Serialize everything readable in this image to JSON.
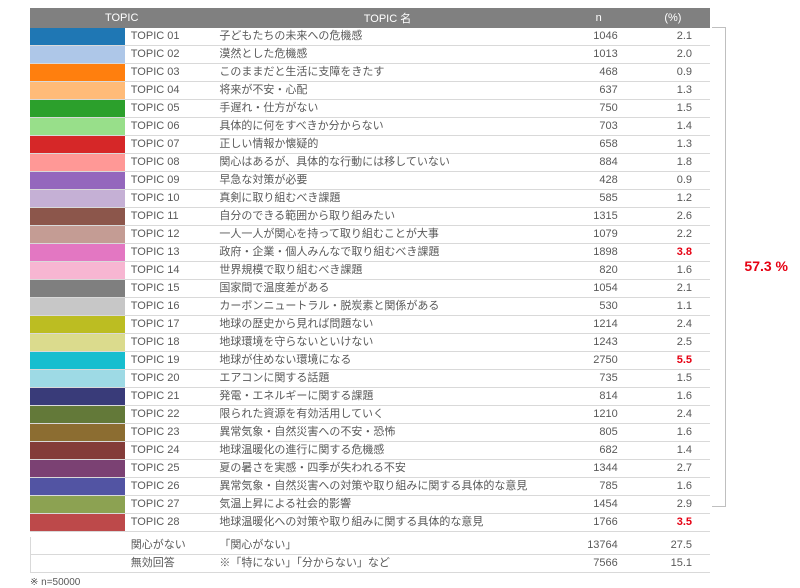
{
  "table": {
    "headers": {
      "topic": "TOPIC",
      "name": "TOPIC 名",
      "n": "n",
      "pct": "(%)"
    },
    "rows": [
      {
        "color": "#1f77b4",
        "topic": "TOPIC 01",
        "name": "子どもたちの未来への危機感",
        "n": "1046",
        "pct": "2.1",
        "hl": false
      },
      {
        "color": "#aec7e8",
        "topic": "TOPIC 02",
        "name": "漠然とした危機感",
        "n": "1013",
        "pct": "2.0",
        "hl": false
      },
      {
        "color": "#ff7f0e",
        "topic": "TOPIC 03",
        "name": "このままだと生活に支障をきたす",
        "n": "468",
        "pct": "0.9",
        "hl": false
      },
      {
        "color": "#ffbb78",
        "topic": "TOPIC 04",
        "name": "将来が不安・心配",
        "n": "637",
        "pct": "1.3",
        "hl": false
      },
      {
        "color": "#2ca02c",
        "topic": "TOPIC 05",
        "name": "手遅れ・仕方がない",
        "n": "750",
        "pct": "1.5",
        "hl": false
      },
      {
        "color": "#98df8a",
        "topic": "TOPIC 06",
        "name": "具体的に何をすべきか分からない",
        "n": "703",
        "pct": "1.4",
        "hl": false
      },
      {
        "color": "#d62728",
        "topic": "TOPIC 07",
        "name": "正しい情報か懐疑的",
        "n": "658",
        "pct": "1.3",
        "hl": false
      },
      {
        "color": "#ff9896",
        "topic": "TOPIC 08",
        "name": "関心はあるが、具体的な行動には移していない",
        "n": "884",
        "pct": "1.8",
        "hl": false
      },
      {
        "color": "#9467bd",
        "topic": "TOPIC 09",
        "name": "早急な対策が必要",
        "n": "428",
        "pct": "0.9",
        "hl": false
      },
      {
        "color": "#c5b0d5",
        "topic": "TOPIC 10",
        "name": "真剣に取り組むべき課題",
        "n": "585",
        "pct": "1.2",
        "hl": false
      },
      {
        "color": "#8c564b",
        "topic": "TOPIC 11",
        "name": "自分のできる範囲から取り組みたい",
        "n": "1315",
        "pct": "2.6",
        "hl": false
      },
      {
        "color": "#c49c94",
        "topic": "TOPIC 12",
        "name": "一人一人が関心を持って取り組むことが大事",
        "n": "1079",
        "pct": "2.2",
        "hl": false
      },
      {
        "color": "#e377c2",
        "topic": "TOPIC 13",
        "name": "政府・企業・個人みんなで取り組むべき課題",
        "n": "1898",
        "pct": "3.8",
        "hl": true
      },
      {
        "color": "#f7b6d2",
        "topic": "TOPIC 14",
        "name": "世界規模で取り組むべき課題",
        "n": "820",
        "pct": "1.6",
        "hl": false
      },
      {
        "color": "#7f7f7f",
        "topic": "TOPIC 15",
        "name": "国家間で温度差がある",
        "n": "1054",
        "pct": "2.1",
        "hl": false
      },
      {
        "color": "#c7c7c7",
        "topic": "TOPIC 16",
        "name": "カーボンニュートラル・脱炭素と関係がある",
        "n": "530",
        "pct": "1.1",
        "hl": false
      },
      {
        "color": "#bcbd22",
        "topic": "TOPIC 17",
        "name": "地球の歴史から見れば問題ない",
        "n": "1214",
        "pct": "2.4",
        "hl": false
      },
      {
        "color": "#dbdb8d",
        "topic": "TOPIC 18",
        "name": "地球環境を守らないといけない",
        "n": "1243",
        "pct": "2.5",
        "hl": false
      },
      {
        "color": "#17becf",
        "topic": "TOPIC 19",
        "name": "地球が住めない環境になる",
        "n": "2750",
        "pct": "5.5",
        "hl": true
      },
      {
        "color": "#9edae5",
        "topic": "TOPIC 20",
        "name": "エアコンに関する話題",
        "n": "735",
        "pct": "1.5",
        "hl": false
      },
      {
        "color": "#393b79",
        "topic": "TOPIC 21",
        "name": "発電・エネルギーに関する課題",
        "n": "814",
        "pct": "1.6",
        "hl": false
      },
      {
        "color": "#637939",
        "topic": "TOPIC 22",
        "name": "限られた資源を有効活用していく",
        "n": "1210",
        "pct": "2.4",
        "hl": false
      },
      {
        "color": "#8c6d31",
        "topic": "TOPIC 23",
        "name": "異常気象・自然災害への不安・恐怖",
        "n": "805",
        "pct": "1.6",
        "hl": false
      },
      {
        "color": "#843c39",
        "topic": "TOPIC 24",
        "name": "地球温暖化の進行に関する危機感",
        "n": "682",
        "pct": "1.4",
        "hl": false
      },
      {
        "color": "#7b4173",
        "topic": "TOPIC 25",
        "name": "夏の暑さを実感・四季が失われる不安",
        "n": "1344",
        "pct": "2.7",
        "hl": false
      },
      {
        "color": "#5254a3",
        "topic": "TOPIC 26",
        "name": "異常気象・自然災害への対策や取り組みに関する具体的な意見",
        "n": "785",
        "pct": "1.6",
        "hl": false
      },
      {
        "color": "#8ca252",
        "topic": "TOPIC 27",
        "name": "気温上昇による社会的影響",
        "n": "1454",
        "pct": "2.9",
        "hl": false
      },
      {
        "color": "#bd494a",
        "topic": "TOPIC 28",
        "name": "地球温暖化への対策や取り組みに関する具体的な意見",
        "n": "1766",
        "pct": "3.5",
        "hl": true
      }
    ],
    "extra_rows": [
      {
        "topic": "関心がない",
        "name": "「関心がない」",
        "n": "13764",
        "pct": "27.5"
      },
      {
        "topic": "無効回答",
        "name": "※「特にない」「分からない」など",
        "n": "7566",
        "pct": "15.1"
      }
    ]
  },
  "footnote": "※ n=50000",
  "bracket_label": "57.3 %"
}
